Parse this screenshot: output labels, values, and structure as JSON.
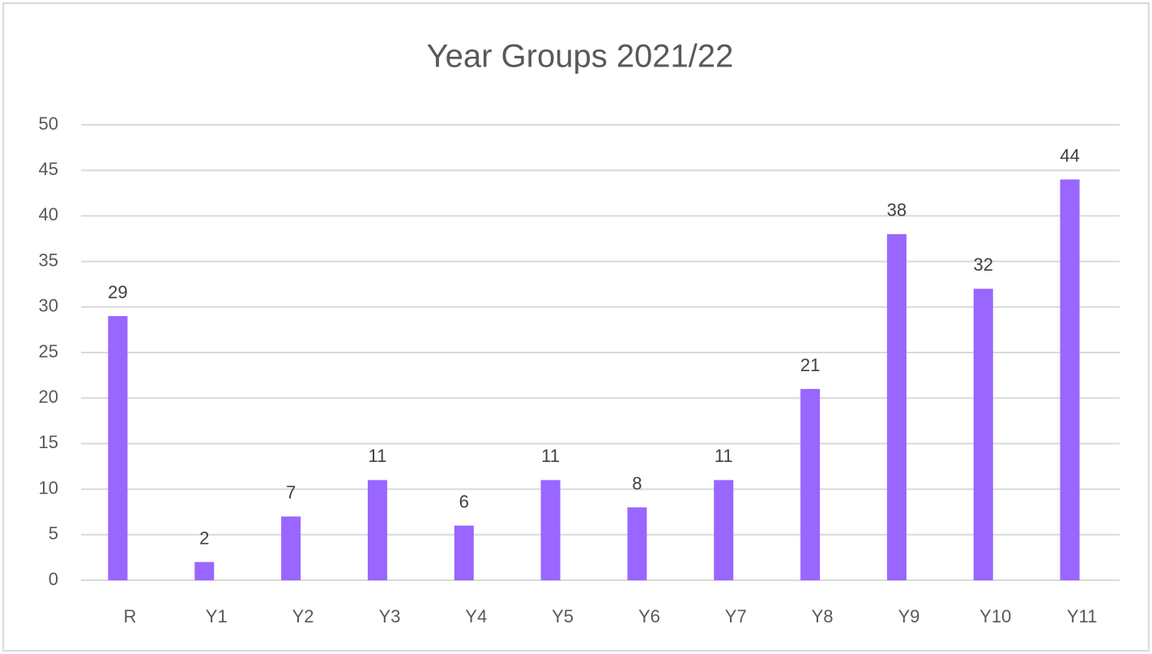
{
  "chart_data": {
    "type": "bar",
    "title": "Year Groups 2021/22",
    "categories": [
      "R",
      "Y1",
      "Y2",
      "Y3",
      "Y4",
      "Y5",
      "Y6",
      "Y7",
      "Y8",
      "Y9",
      "Y10",
      "Y11"
    ],
    "values": [
      29,
      2,
      7,
      11,
      6,
      11,
      8,
      11,
      21,
      38,
      32,
      44
    ],
    "color": "#9966ff",
    "ylim": [
      0,
      50
    ],
    "yticks": [
      0,
      5,
      10,
      15,
      20,
      25,
      30,
      35,
      40,
      45,
      50
    ],
    "grid": true
  }
}
